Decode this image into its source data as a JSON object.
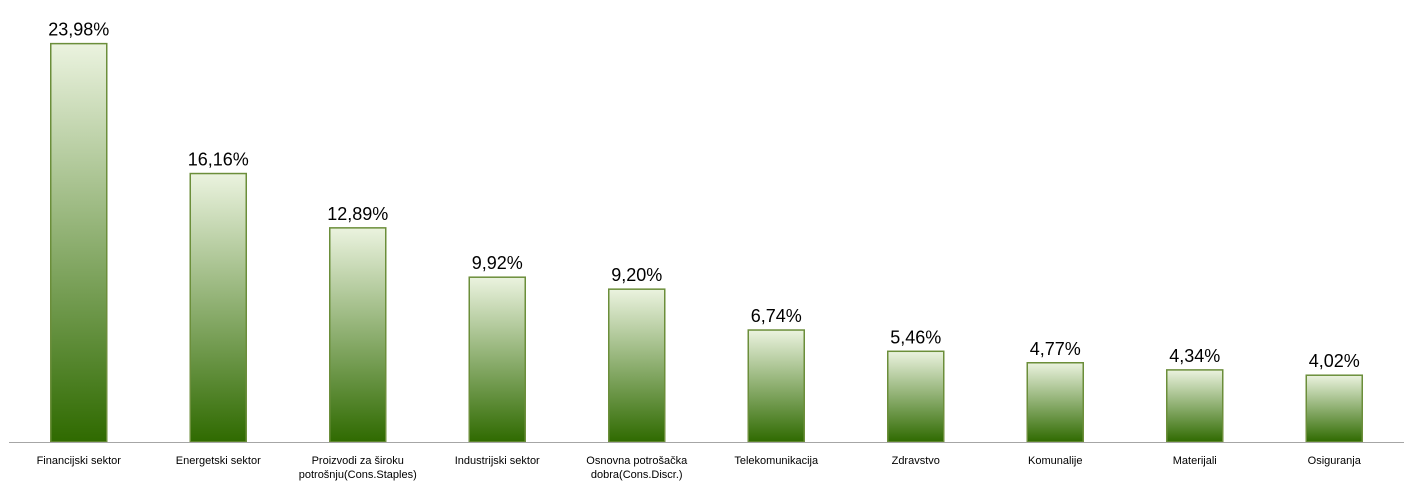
{
  "chart_data": {
    "type": "bar",
    "title": "",
    "xlabel": "",
    "ylabel": "",
    "ylim": [
      0,
      24.8
    ],
    "grid": false,
    "legend": "none",
    "categories": [
      [
        "Financijski sektor"
      ],
      [
        "Energetski sektor"
      ],
      [
        "Proizvodi za široku",
        "potrošnju(Cons.Staples)"
      ],
      [
        "Industrijski sektor"
      ],
      [
        "Osnovna potrošačka",
        "dobra(Cons.Discr.)"
      ],
      [
        "Telekomunikacija"
      ],
      [
        "Zdravstvo"
      ],
      [
        "Komunalije"
      ],
      [
        "Materijali"
      ],
      [
        "Osiguranja"
      ]
    ],
    "values": [
      23.98,
      16.16,
      12.89,
      9.92,
      9.2,
      6.74,
      5.46,
      4.77,
      4.34,
      4.02
    ],
    "value_labels": [
      "23,98%",
      "16,16%",
      "12,89%",
      "9,92%",
      "9,20%",
      "6,74%",
      "5,46%",
      "4,77%",
      "4,34%",
      "4,02%"
    ],
    "colors": {
      "bar_top": "#ebf3df",
      "bar_bottom": "#2f6a00",
      "bar_outline": "#6b8e3a",
      "axis": "#a6a6a6"
    }
  }
}
